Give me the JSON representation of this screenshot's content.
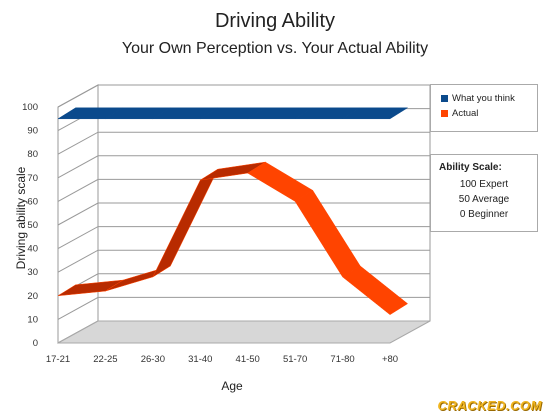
{
  "chart_data": {
    "type": "area",
    "title": "Driving Ability",
    "subtitle": "Your Own Perception vs. Your Actual Ability",
    "xlabel": "Age",
    "ylabel": "Driving ability scale",
    "categories": [
      "17-21",
      "22-25",
      "26-30",
      "31-40",
      "41-50",
      "51-70",
      "71-80",
      "+80"
    ],
    "y_ticks": [
      "0",
      "10",
      "20",
      "30",
      "40",
      "50",
      "60",
      "70",
      "80",
      "90",
      "100"
    ],
    "ylim": [
      0,
      100
    ],
    "series": [
      {
        "name": "What you think",
        "values": [
          95,
          95,
          95,
          95,
          95,
          95,
          95,
          95
        ],
        "color": "#0b4a8c"
      },
      {
        "name": "Actual",
        "values": [
          20,
          22,
          28,
          69,
          72,
          60,
          28,
          12
        ],
        "color": "#ff4400"
      }
    ],
    "legend_placement": "top-right",
    "grid": true,
    "scale_box": {
      "title": "Ability Scale:",
      "lines": [
        "100 Expert",
        "50 Average",
        "0 Beginner"
      ]
    }
  },
  "watermark": "CRACKED.COM"
}
